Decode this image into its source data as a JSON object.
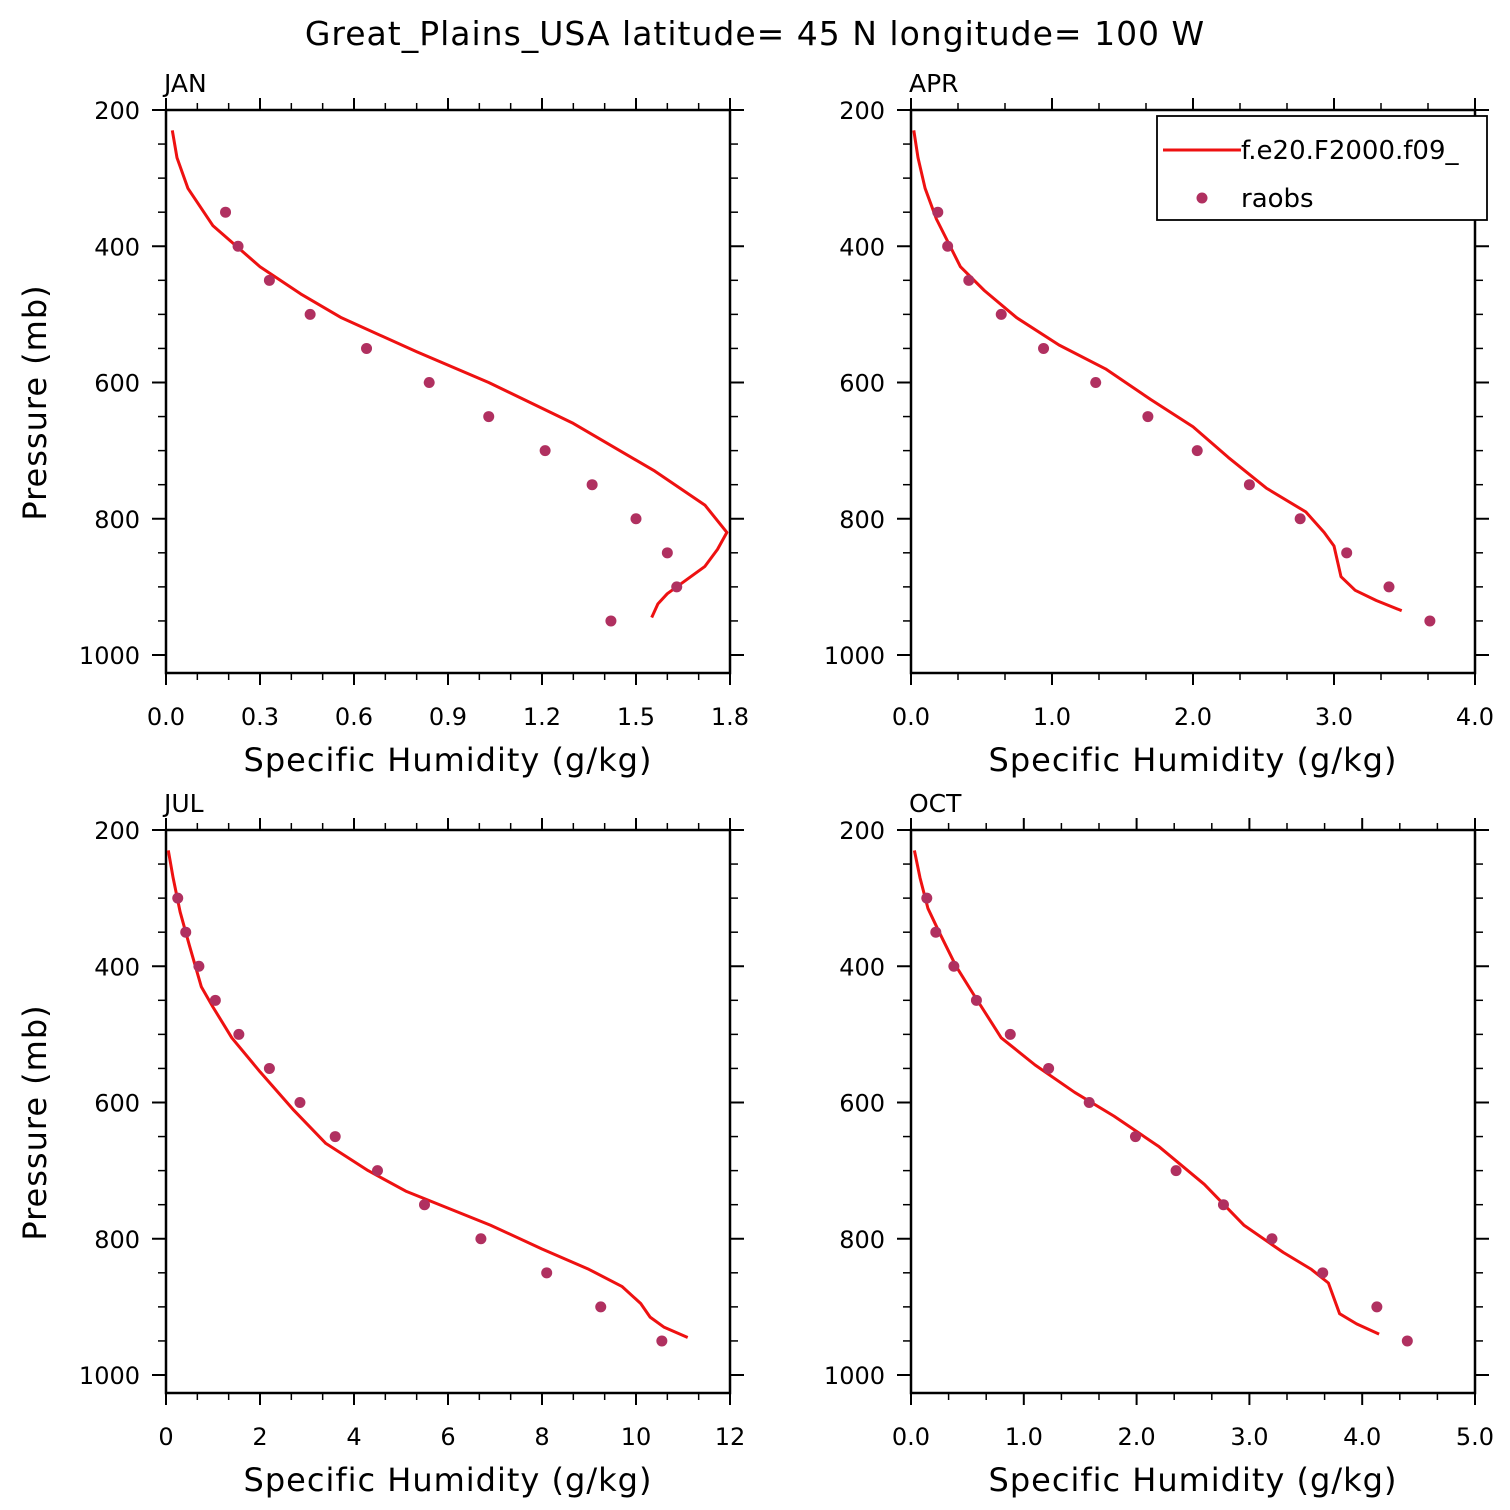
{
  "figure_title": "Great_Plains_USA  latitude= 45 N longitude= 100 W",
  "chart_data": [
    {
      "id": "jan",
      "type": "line",
      "title": "JAN",
      "xlabel": "Specific Humidity (g/kg)",
      "ylabel": "Pressure (mb)",
      "xlim": [
        0,
        1.8
      ],
      "ylim": [
        1000,
        200
      ],
      "y_inverted": true,
      "xticks": [
        0,
        0.3,
        0.6,
        0.9,
        1.2,
        1.5,
        1.8
      ],
      "xtick_labels": [
        "0.0",
        "0.3",
        "0.6",
        "0.9",
        "1.2",
        "1.5",
        "1.8"
      ],
      "yticks": [
        200,
        400,
        600,
        800,
        1000
      ],
      "ytick_labels": [
        "200",
        "400",
        "600",
        "800",
        "1000"
      ],
      "grid": false,
      "legend": null,
      "series": [
        {
          "name": "f.e20.F2000.f09_",
          "kind": "line",
          "color": "#ee1111",
          "x": [
            0.02,
            0.035,
            0.07,
            0.15,
            0.3,
            0.43,
            0.56,
            0.8,
            1.03,
            1.3,
            1.56,
            1.72,
            1.79,
            1.76,
            1.72,
            1.66,
            1.6,
            1.57,
            1.55
          ],
          "y": [
            230,
            270,
            315,
            370,
            430,
            470,
            505,
            555,
            600,
            660,
            730,
            780,
            820,
            845,
            870,
            890,
            910,
            925,
            945
          ]
        },
        {
          "name": "raobs",
          "kind": "scatter",
          "color": "#b03060",
          "x": [
            0.19,
            0.23,
            0.33,
            0.46,
            0.64,
            0.84,
            1.03,
            1.21,
            1.36,
            1.5,
            1.6,
            1.63,
            1.42
          ],
          "y": [
            350,
            400,
            450,
            500,
            550,
            600,
            650,
            700,
            750,
            800,
            850,
            900,
            950
          ]
        }
      ]
    },
    {
      "id": "apr",
      "type": "line",
      "title": "APR",
      "xlabel": "Specific Humidity (g/kg)",
      "ylabel": "",
      "xlim": [
        0,
        4.0
      ],
      "ylim": [
        1000,
        200
      ],
      "y_inverted": true,
      "xticks": [
        0,
        1,
        2,
        3,
        4
      ],
      "xtick_labels": [
        "0.0",
        "1.0",
        "2.0",
        "3.0",
        "4.0"
      ],
      "yticks": [
        200,
        400,
        600,
        800,
        1000
      ],
      "ytick_labels": [
        "200",
        "400",
        "600",
        "800",
        "1000"
      ],
      "grid": false,
      "legend": "top-right",
      "series": [
        {
          "name": "f.e20.F2000.f09_",
          "kind": "line",
          "color": "#ee1111",
          "x": [
            0.02,
            0.05,
            0.1,
            0.18,
            0.35,
            0.52,
            0.75,
            1.05,
            1.38,
            1.7,
            2.0,
            2.25,
            2.52,
            2.8,
            2.93,
            3.0,
            3.05,
            3.15,
            3.3,
            3.48
          ],
          "y": [
            230,
            270,
            315,
            360,
            430,
            465,
            505,
            545,
            580,
            625,
            665,
            710,
            755,
            790,
            820,
            840,
            885,
            905,
            920,
            935
          ]
        },
        {
          "name": "raobs",
          "kind": "scatter",
          "color": "#b03060",
          "x": [
            0.19,
            0.26,
            0.41,
            0.64,
            0.94,
            1.31,
            1.68,
            2.03,
            2.4,
            2.76,
            3.09,
            3.39,
            3.68
          ],
          "y": [
            350,
            400,
            450,
            500,
            550,
            600,
            650,
            700,
            750,
            800,
            850,
            900,
            950
          ]
        }
      ]
    },
    {
      "id": "jul",
      "type": "line",
      "title": "JUL",
      "xlabel": "Specific Humidity (g/kg)",
      "ylabel": "Pressure (mb)",
      "xlim": [
        0,
        12
      ],
      "ylim": [
        1000,
        200
      ],
      "y_inverted": true,
      "xticks": [
        0,
        2,
        4,
        6,
        8,
        10,
        12
      ],
      "xtick_labels": [
        "0",
        "2",
        "4",
        "6",
        "8",
        "10",
        "12"
      ],
      "yticks": [
        200,
        400,
        600,
        800,
        1000
      ],
      "ytick_labels": [
        "200",
        "400",
        "600",
        "800",
        "1000"
      ],
      "grid": false,
      "legend": null,
      "series": [
        {
          "name": "f.e20.F2000.f09_",
          "kind": "line",
          "color": "#ee1111",
          "x": [
            0.05,
            0.15,
            0.3,
            0.5,
            0.75,
            1.0,
            1.4,
            2.0,
            2.7,
            3.4,
            4.3,
            5.1,
            6.0,
            6.9,
            8.0,
            9.0,
            9.7,
            10.1,
            10.3,
            10.6,
            11.1
          ],
          "y": [
            230,
            270,
            320,
            370,
            430,
            460,
            505,
            555,
            610,
            660,
            700,
            730,
            755,
            780,
            815,
            845,
            870,
            895,
            915,
            930,
            945
          ]
        },
        {
          "name": "raobs",
          "kind": "scatter",
          "color": "#b03060",
          "x": [
            0.25,
            0.42,
            0.7,
            1.05,
            1.55,
            2.2,
            2.85,
            3.6,
            4.5,
            5.5,
            6.7,
            8.1,
            9.25,
            10.55
          ],
          "y": [
            300,
            350,
            400,
            450,
            500,
            550,
            600,
            650,
            700,
            750,
            800,
            850,
            900,
            950
          ]
        }
      ]
    },
    {
      "id": "oct",
      "type": "line",
      "title": "OCT",
      "xlabel": "Specific Humidity (g/kg)",
      "ylabel": "",
      "xlim": [
        0,
        5.0
      ],
      "ylim": [
        1000,
        200
      ],
      "y_inverted": true,
      "xticks": [
        0,
        1,
        2,
        3,
        4,
        5
      ],
      "xtick_labels": [
        "0.0",
        "1.0",
        "2.0",
        "3.0",
        "4.0",
        "5.0"
      ],
      "yticks": [
        200,
        400,
        600,
        800,
        1000
      ],
      "ytick_labels": [
        "200",
        "400",
        "600",
        "800",
        "1000"
      ],
      "grid": false,
      "legend": null,
      "series": [
        {
          "name": "f.e20.F2000.f09_",
          "kind": "line",
          "color": "#ee1111",
          "x": [
            0.03,
            0.08,
            0.15,
            0.25,
            0.4,
            0.55,
            0.8,
            1.1,
            1.45,
            1.8,
            2.2,
            2.6,
            2.95,
            3.3,
            3.55,
            3.7,
            3.8,
            3.95,
            4.15
          ],
          "y": [
            230,
            270,
            315,
            350,
            400,
            440,
            505,
            545,
            585,
            620,
            665,
            720,
            780,
            820,
            845,
            865,
            910,
            925,
            940
          ]
        },
        {
          "name": "raobs",
          "kind": "scatter",
          "color": "#b03060",
          "x": [
            0.14,
            0.22,
            0.38,
            0.58,
            0.88,
            1.22,
            1.58,
            1.99,
            2.35,
            2.77,
            3.2,
            3.65,
            4.13,
            4.4
          ],
          "y": [
            300,
            350,
            400,
            450,
            500,
            550,
            600,
            650,
            700,
            750,
            800,
            850,
            900,
            950
          ]
        }
      ]
    }
  ]
}
